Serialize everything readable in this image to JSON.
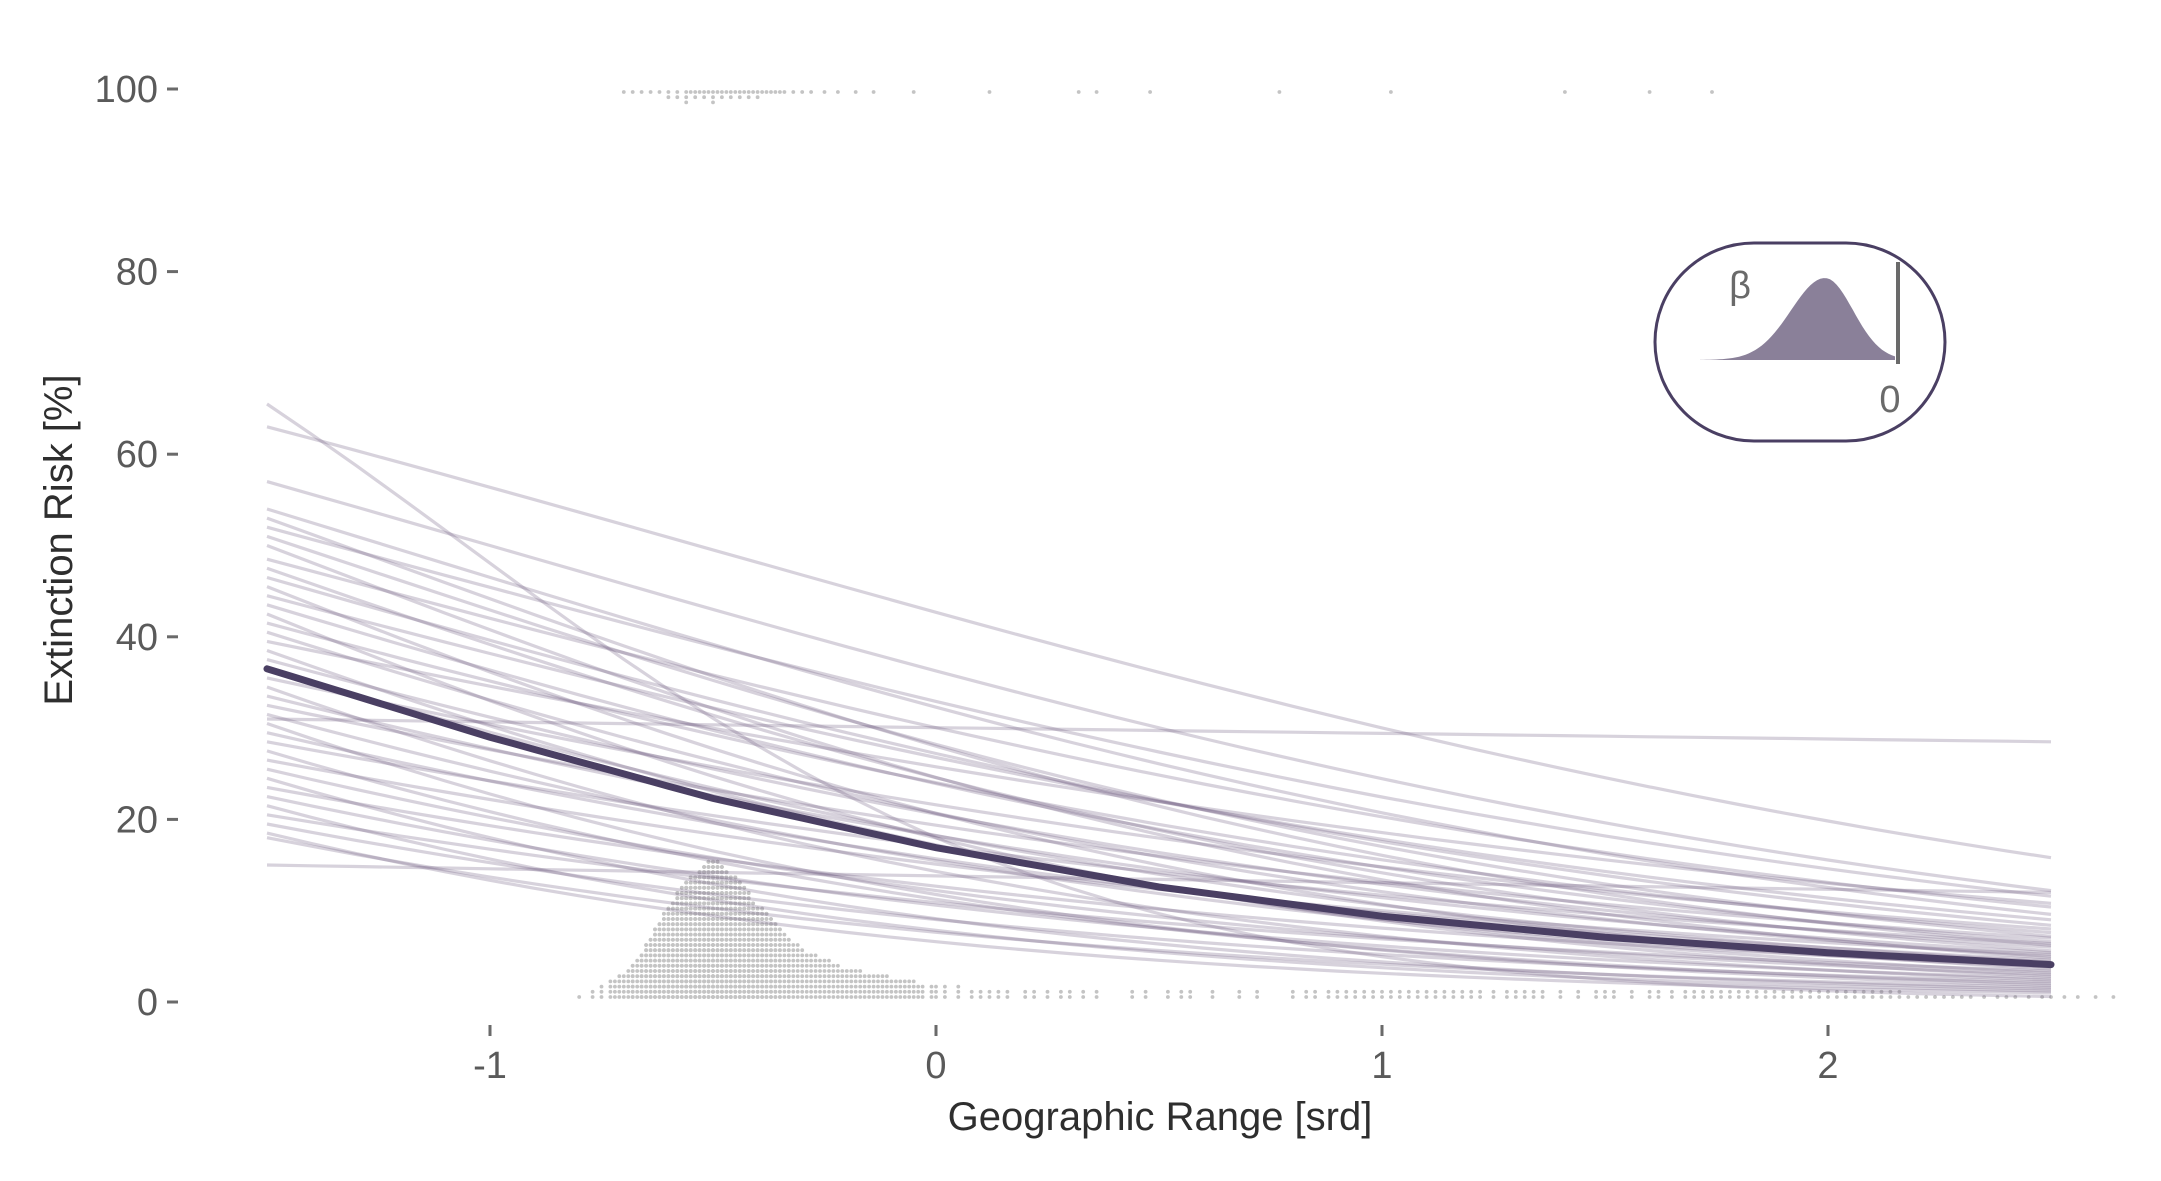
{
  "chart_data": {
    "type": "line",
    "title": "",
    "xlabel": "Geographic Range [srd]",
    "ylabel": "Extinction Risk [%]",
    "xlim": [
      -1.5,
      2.5
    ],
    "ylim": [
      0,
      100
    ],
    "x_ticks": [
      -1,
      0,
      1,
      2
    ],
    "y_ticks": [
      0,
      20,
      40,
      60,
      80,
      100
    ],
    "grid": false,
    "colors": {
      "mean_line": "#4a3f63",
      "draw_lines": "#6e5f82",
      "rug_points": "#c4c4c4",
      "inset_fill": "#8a8099",
      "inset_border": "#4a3f63"
    },
    "mean_curve": {
      "name": "",
      "x": [
        -1.5,
        -1.0,
        -0.5,
        0.0,
        0.5,
        1.0,
        1.5,
        2.0,
        2.5
      ],
      "y": [
        36.5,
        29.0,
        22.3,
        16.9,
        12.6,
        9.4,
        7.1,
        5.4,
        4.1
      ]
    },
    "posterior_draws": {
      "x_range": [
        -1.5,
        2.5
      ],
      "endpoints": [
        [
          65.5,
          0.6
        ],
        [
          63.0,
          15.8
        ],
        [
          57.0,
          12.2
        ],
        [
          54.0,
          9.6
        ],
        [
          53.0,
          6.2
        ],
        [
          52.0,
          11.6
        ],
        [
          51.0,
          7.2
        ],
        [
          50.0,
          4.8
        ],
        [
          48.5,
          10.4
        ],
        [
          47.5,
          5.6
        ],
        [
          46.5,
          8.4
        ],
        [
          45.5,
          3.6
        ],
        [
          44.5,
          9.0
        ],
        [
          43.5,
          6.6
        ],
        [
          42.5,
          2.8
        ],
        [
          41.5,
          7.6
        ],
        [
          40.5,
          5.0
        ],
        [
          39.5,
          10.8
        ],
        [
          38.5,
          3.2
        ],
        [
          37.5,
          6.0
        ],
        [
          36.5,
          4.4
        ],
        [
          35.5,
          8.0
        ],
        [
          34.5,
          2.4
        ],
        [
          33.5,
          5.4
        ],
        [
          32.5,
          7.0
        ],
        [
          31.5,
          3.8
        ],
        [
          31.0,
          28.5
        ],
        [
          30.5,
          1.8
        ],
        [
          29.5,
          4.6
        ],
        [
          28.5,
          6.4
        ],
        [
          27.5,
          2.0
        ],
        [
          26.5,
          5.2
        ],
        [
          25.5,
          3.0
        ],
        [
          24.5,
          1.4
        ],
        [
          23.5,
          4.0
        ],
        [
          22.5,
          2.6
        ],
        [
          21.5,
          1.2
        ],
        [
          20.5,
          3.4
        ],
        [
          19.5,
          2.2
        ],
        [
          18.5,
          1.0
        ],
        [
          18.0,
          1.6
        ],
        [
          15.0,
          12.0
        ]
      ]
    },
    "rug": {
      "top_y": 100,
      "bottom_y": 0,
      "top_x": [
        -0.7,
        -0.68,
        -0.66,
        -0.64,
        -0.62,
        -0.6,
        -0.6,
        -0.58,
        -0.58,
        -0.56,
        -0.56,
        -0.56,
        -0.55,
        -0.54,
        -0.54,
        -0.53,
        -0.52,
        -0.52,
        -0.51,
        -0.5,
        -0.5,
        -0.5,
        -0.49,
        -0.48,
        -0.48,
        -0.47,
        -0.46,
        -0.46,
        -0.45,
        -0.44,
        -0.44,
        -0.43,
        -0.42,
        -0.42,
        -0.41,
        -0.4,
        -0.4,
        -0.39,
        -0.38,
        -0.37,
        -0.36,
        -0.35,
        -0.34,
        -0.32,
        -0.3,
        -0.28,
        -0.25,
        -0.22,
        -0.18,
        -0.14,
        -0.05,
        0.12,
        0.32,
        0.36,
        0.48,
        0.77,
        1.02,
        1.41,
        1.6,
        1.74
      ],
      "bottom_x": [
        -0.8,
        -0.77,
        -0.75,
        -0.73,
        -0.72,
        -0.71,
        -0.7,
        -0.69,
        -0.68,
        -0.68,
        -0.67,
        -0.66,
        -0.66,
        -0.65,
        -0.65,
        -0.64,
        -0.64,
        -0.63,
        -0.63,
        -0.62,
        -0.62,
        -0.61,
        -0.61,
        -0.6,
        -0.6,
        -0.6,
        -0.59,
        -0.59,
        -0.58,
        -0.58,
        -0.58,
        -0.57,
        -0.57,
        -0.56,
        -0.56,
        -0.56,
        -0.55,
        -0.55,
        -0.55,
        -0.54,
        -0.54,
        -0.54,
        -0.53,
        -0.53,
        -0.53,
        -0.52,
        -0.52,
        -0.52,
        -0.51,
        -0.51,
        -0.51,
        -0.5,
        -0.5,
        -0.5,
        -0.5,
        -0.49,
        -0.49,
        -0.49,
        -0.48,
        -0.48,
        -0.48,
        -0.47,
        -0.47,
        -0.47,
        -0.46,
        -0.46,
        -0.46,
        -0.45,
        -0.45,
        -0.45,
        -0.44,
        -0.44,
        -0.44,
        -0.43,
        -0.43,
        -0.42,
        -0.42,
        -0.42,
        -0.41,
        -0.41,
        -0.4,
        -0.4,
        -0.4,
        -0.39,
        -0.39,
        -0.38,
        -0.38,
        -0.37,
        -0.37,
        -0.36,
        -0.36,
        -0.35,
        -0.35,
        -0.34,
        -0.33,
        -0.33,
        -0.32,
        -0.31,
        -0.3,
        -0.29,
        -0.28,
        -0.27,
        -0.26,
        -0.25,
        -0.24,
        -0.23,
        -0.22,
        -0.21,
        -0.2,
        -0.19,
        -0.18,
        -0.17,
        -0.16,
        -0.15,
        -0.14,
        -0.13,
        -0.12,
        -0.11,
        -0.1,
        -0.09,
        -0.08,
        -0.07,
        -0.06,
        -0.05,
        -0.04,
        -0.03,
        -0.01,
        0.0,
        0.02,
        0.05,
        0.08,
        0.1,
        0.12,
        0.14,
        0.16,
        0.2,
        0.22,
        0.25,
        0.28,
        0.3,
        0.33,
        0.36,
        0.44,
        0.47,
        0.52,
        0.55,
        0.57,
        0.62,
        0.68,
        0.72,
        0.8,
        0.83,
        0.85,
        0.88,
        0.9,
        0.92,
        0.94,
        0.96,
        0.98,
        1.0,
        1.02,
        1.04,
        1.06,
        1.08,
        1.1,
        1.12,
        1.14,
        1.16,
        1.18,
        1.2,
        1.22,
        1.25,
        1.28,
        1.3,
        1.32,
        1.34,
        1.36,
        1.4,
        1.44,
        1.48,
        1.5,
        1.52,
        1.56,
        1.6,
        1.62,
        1.65,
        1.68,
        1.7,
        1.72,
        1.74,
        1.76,
        1.78,
        1.8,
        1.82,
        1.84,
        1.86,
        1.88,
        1.9,
        1.92,
        1.94,
        1.96,
        1.98,
        2.0,
        2.02,
        2.04,
        2.06,
        2.08,
        2.1,
        2.12,
        2.14,
        2.16,
        2.18,
        2.2,
        2.22,
        2.24,
        2.26,
        2.28,
        2.3,
        2.32,
        2.35,
        2.38,
        2.4,
        2.42,
        2.45,
        2.48,
        2.5,
        2.53,
        2.56,
        2.6,
        2.64
      ],
      "bottom_height": {
        "x": [
          -0.8,
          -0.75,
          -0.7,
          -0.65,
          -0.6,
          -0.55,
          -0.5,
          -0.45,
          -0.4,
          -0.35,
          -0.3,
          -0.25,
          -0.2,
          -0.15,
          -0.1,
          -0.05,
          0.0,
          0.2,
          0.5,
          1.0,
          1.5,
          2.0,
          2.6
        ],
        "y": [
          0.3,
          1.5,
          3.0,
          6.0,
          10.5,
          13.5,
          15.5,
          13.5,
          10.5,
          8.0,
          5.5,
          4.5,
          3.5,
          3.0,
          2.5,
          2.0,
          1.5,
          1.2,
          1.0,
          1.0,
          1.0,
          1.0,
          0.5
        ]
      }
    },
    "inset": {
      "label": "β",
      "ref_label": "0"
    }
  }
}
